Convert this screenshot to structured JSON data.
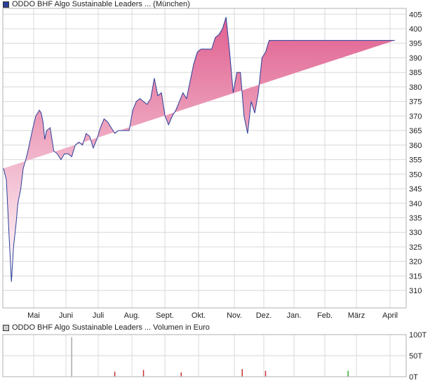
{
  "legend_price": "ODDO BHF Algo Sustainable Leaders ... (München)",
  "legend_volume": "ODDO BHF Algo Sustainable Leaders ... Volumen in Euro",
  "colors": {
    "line": "#2a3f9a",
    "area_top": "#e0608f",
    "area_bottom": "#ffffff",
    "grid": "#d8d8d8",
    "swatch_price": "#2a3f9a",
    "swatch_volume": "#cccccc",
    "volume_bar": "#cc3333",
    "volume_bar_up": "#33aa33",
    "volume_bar_neutral": "#aaaaaa"
  },
  "chart_data": [
    {
      "type": "area",
      "series": [
        {
          "name": "ODDO BHF Algo Sustainable Leaders ... (München)"
        }
      ],
      "x_tick_labels": [
        "Mai",
        "Juni",
        "Juli",
        "Aug.",
        "Sept.",
        "Okt.",
        "Nov.",
        "Dez.",
        "Jan.",
        "Feb.",
        "März",
        "April"
      ],
      "y_ticks": [
        310,
        315,
        320,
        325,
        330,
        335,
        340,
        345,
        350,
        355,
        360,
        365,
        370,
        375,
        380,
        385,
        390,
        395,
        400,
        405
      ],
      "ylim": [
        304,
        407
      ],
      "x_month_index": [
        0,
        0.08,
        0.15,
        0.22,
        0.28,
        0.35,
        0.4,
        0.48,
        0.55,
        0.62,
        0.68,
        0.75,
        0.82,
        0.9,
        1.0,
        1.05,
        1.1,
        1.15,
        1.2,
        1.3,
        1.4,
        1.5,
        1.6,
        1.7,
        1.8,
        1.9,
        2.0,
        2.1,
        2.2,
        2.3,
        2.4,
        2.5,
        2.6,
        2.7,
        2.8,
        2.9,
        3.0,
        3.1,
        3.2,
        3.3,
        3.4,
        3.5,
        3.6,
        3.7,
        3.8,
        3.9,
        4.0,
        4.1,
        4.2,
        4.3,
        4.4,
        4.5,
        4.6,
        4.7,
        4.8,
        4.9,
        5.0,
        5.1,
        5.2,
        5.3,
        5.4,
        5.5,
        5.6,
        5.7,
        5.8,
        5.9,
        6.0,
        6.1,
        6.2,
        6.3,
        6.4,
        6.5,
        6.6,
        6.7,
        6.8,
        6.9,
        7.0,
        7.1,
        7.2,
        7.3,
        7.4,
        7.5,
        7.6,
        7.7,
        7.8,
        7.9,
        8.0,
        8.1,
        8.2,
        8.3,
        8.4,
        8.5,
        8.6,
        8.7,
        8.8,
        8.9,
        9.0,
        9.1,
        9.2,
        9.3,
        9.4,
        9.5,
        9.6,
        9.7,
        9.8,
        9.9,
        10.0,
        10.1,
        10.2,
        10.3,
        10.4,
        10.5,
        10.6,
        10.7,
        10.8,
        10.9,
        11.0,
        11.1,
        11.2
      ],
      "values": [
        352,
        348,
        330,
        313,
        325,
        333,
        340,
        345,
        352,
        355,
        358,
        362,
        366,
        370,
        372,
        371,
        368,
        362,
        365,
        366,
        358,
        357,
        355,
        357,
        357,
        356,
        360,
        361,
        360,
        364,
        363,
        359,
        362,
        366,
        369,
        368,
        366,
        364,
        365,
        365,
        365,
        365,
        372,
        375,
        376,
        375,
        374,
        376,
        383,
        377,
        378,
        370,
        367,
        370,
        372,
        375,
        378,
        376,
        382,
        388,
        392,
        393,
        393,
        393,
        393,
        397,
        398,
        400,
        404,
        392,
        378,
        385,
        385,
        370,
        364,
        375,
        371,
        378,
        390,
        392,
        396,
        396,
        396,
        396,
        396,
        396,
        396,
        396,
        396,
        396,
        396,
        396,
        396,
        396,
        396,
        396,
        396,
        396,
        396,
        396,
        396,
        396,
        396,
        396,
        396,
        396,
        396,
        396,
        396,
        396,
        396,
        396,
        396,
        396,
        396,
        396
      ]
    },
    {
      "type": "bar",
      "series": [
        {
          "name": "ODDO BHF Algo Sustainable Leaders ... Volumen in Euro"
        }
      ],
      "y_tick_labels": [
        "100T",
        "50T",
        "0T"
      ],
      "ylim": [
        0,
        100
      ],
      "x_month_index": [
        1.9,
        3.1,
        3.9,
        4.95,
        6.65,
        7.3,
        9.6
      ],
      "values": [
        94,
        12,
        16,
        10,
        18,
        14,
        14
      ],
      "colors": [
        "#aaaaaa",
        "#cc3333",
        "#cc3333",
        "#cc3333",
        "#cc3333",
        "#cc3333",
        "#33aa33"
      ]
    }
  ]
}
